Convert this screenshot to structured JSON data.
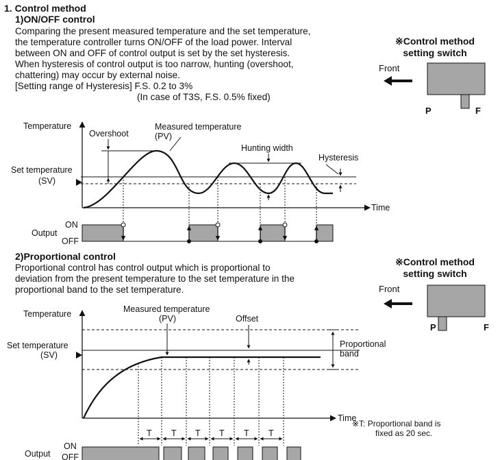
{
  "section": {
    "title": "1. Control method"
  },
  "onoff": {
    "heading": "1)ON/OFF control",
    "lines": [
      "Comparing the present measured temperature and the set temperature,",
      "the temperature controller turns ON/OFF of the load power. Interval",
      "between ON and OFF of control output is set by the set hysteresis.",
      "When hysteresis of control output is too narrow, hunting (overshoot,",
      "chattering) may occur by external noise.",
      "[Setting range of Hysteresis] F.S. 0.2 to 3%"
    ],
    "note": "(In case of T3S, F.S. 0.5% fixed)",
    "switch": {
      "title_line1": "※Control method",
      "title_line2": "setting switch",
      "front": "Front",
      "p": "P",
      "f": "F",
      "position": "F"
    },
    "diagram": {
      "temperature": "Temperature",
      "overshoot": "Overshoot",
      "measured_line1": "Measured temperature",
      "measured_line2": "(PV)",
      "hunting_width": "Hunting width",
      "hysteresis": "Hysteresis",
      "set_line1": "Set temperature",
      "set_line2": "(SV)",
      "time": "Time",
      "output": "Output",
      "on": "ON",
      "off": "OFF"
    }
  },
  "prop": {
    "heading": "2)Proportional control",
    "lines": [
      "Proportional control has control output which is proportional to",
      "deviation from the present temperature to the set temperature in the",
      "proportional band to the set temperature."
    ],
    "switch": {
      "title_line1": "※Control method",
      "title_line2": "setting switch",
      "front": "Front",
      "p": "P",
      "f": "F",
      "position": "P"
    },
    "diagram": {
      "temperature": "Temperature",
      "measured_line1": "Measured temperature",
      "measured_line2": "(PV)",
      "offset": "Offset",
      "band_line1": "Proportional",
      "band_line2": "band",
      "set_line1": "Set temperature",
      "set_line2": "(SV)",
      "time": "Time",
      "t_label": "T",
      "note_line1": "※T: Proportional band is",
      "note_line2": "fixed as 20 sec.",
      "output": "Output",
      "on": "ON",
      "off": "OFF"
    }
  },
  "colors": {
    "gray_fill": "#a6a6a6",
    "line": "#111111"
  }
}
